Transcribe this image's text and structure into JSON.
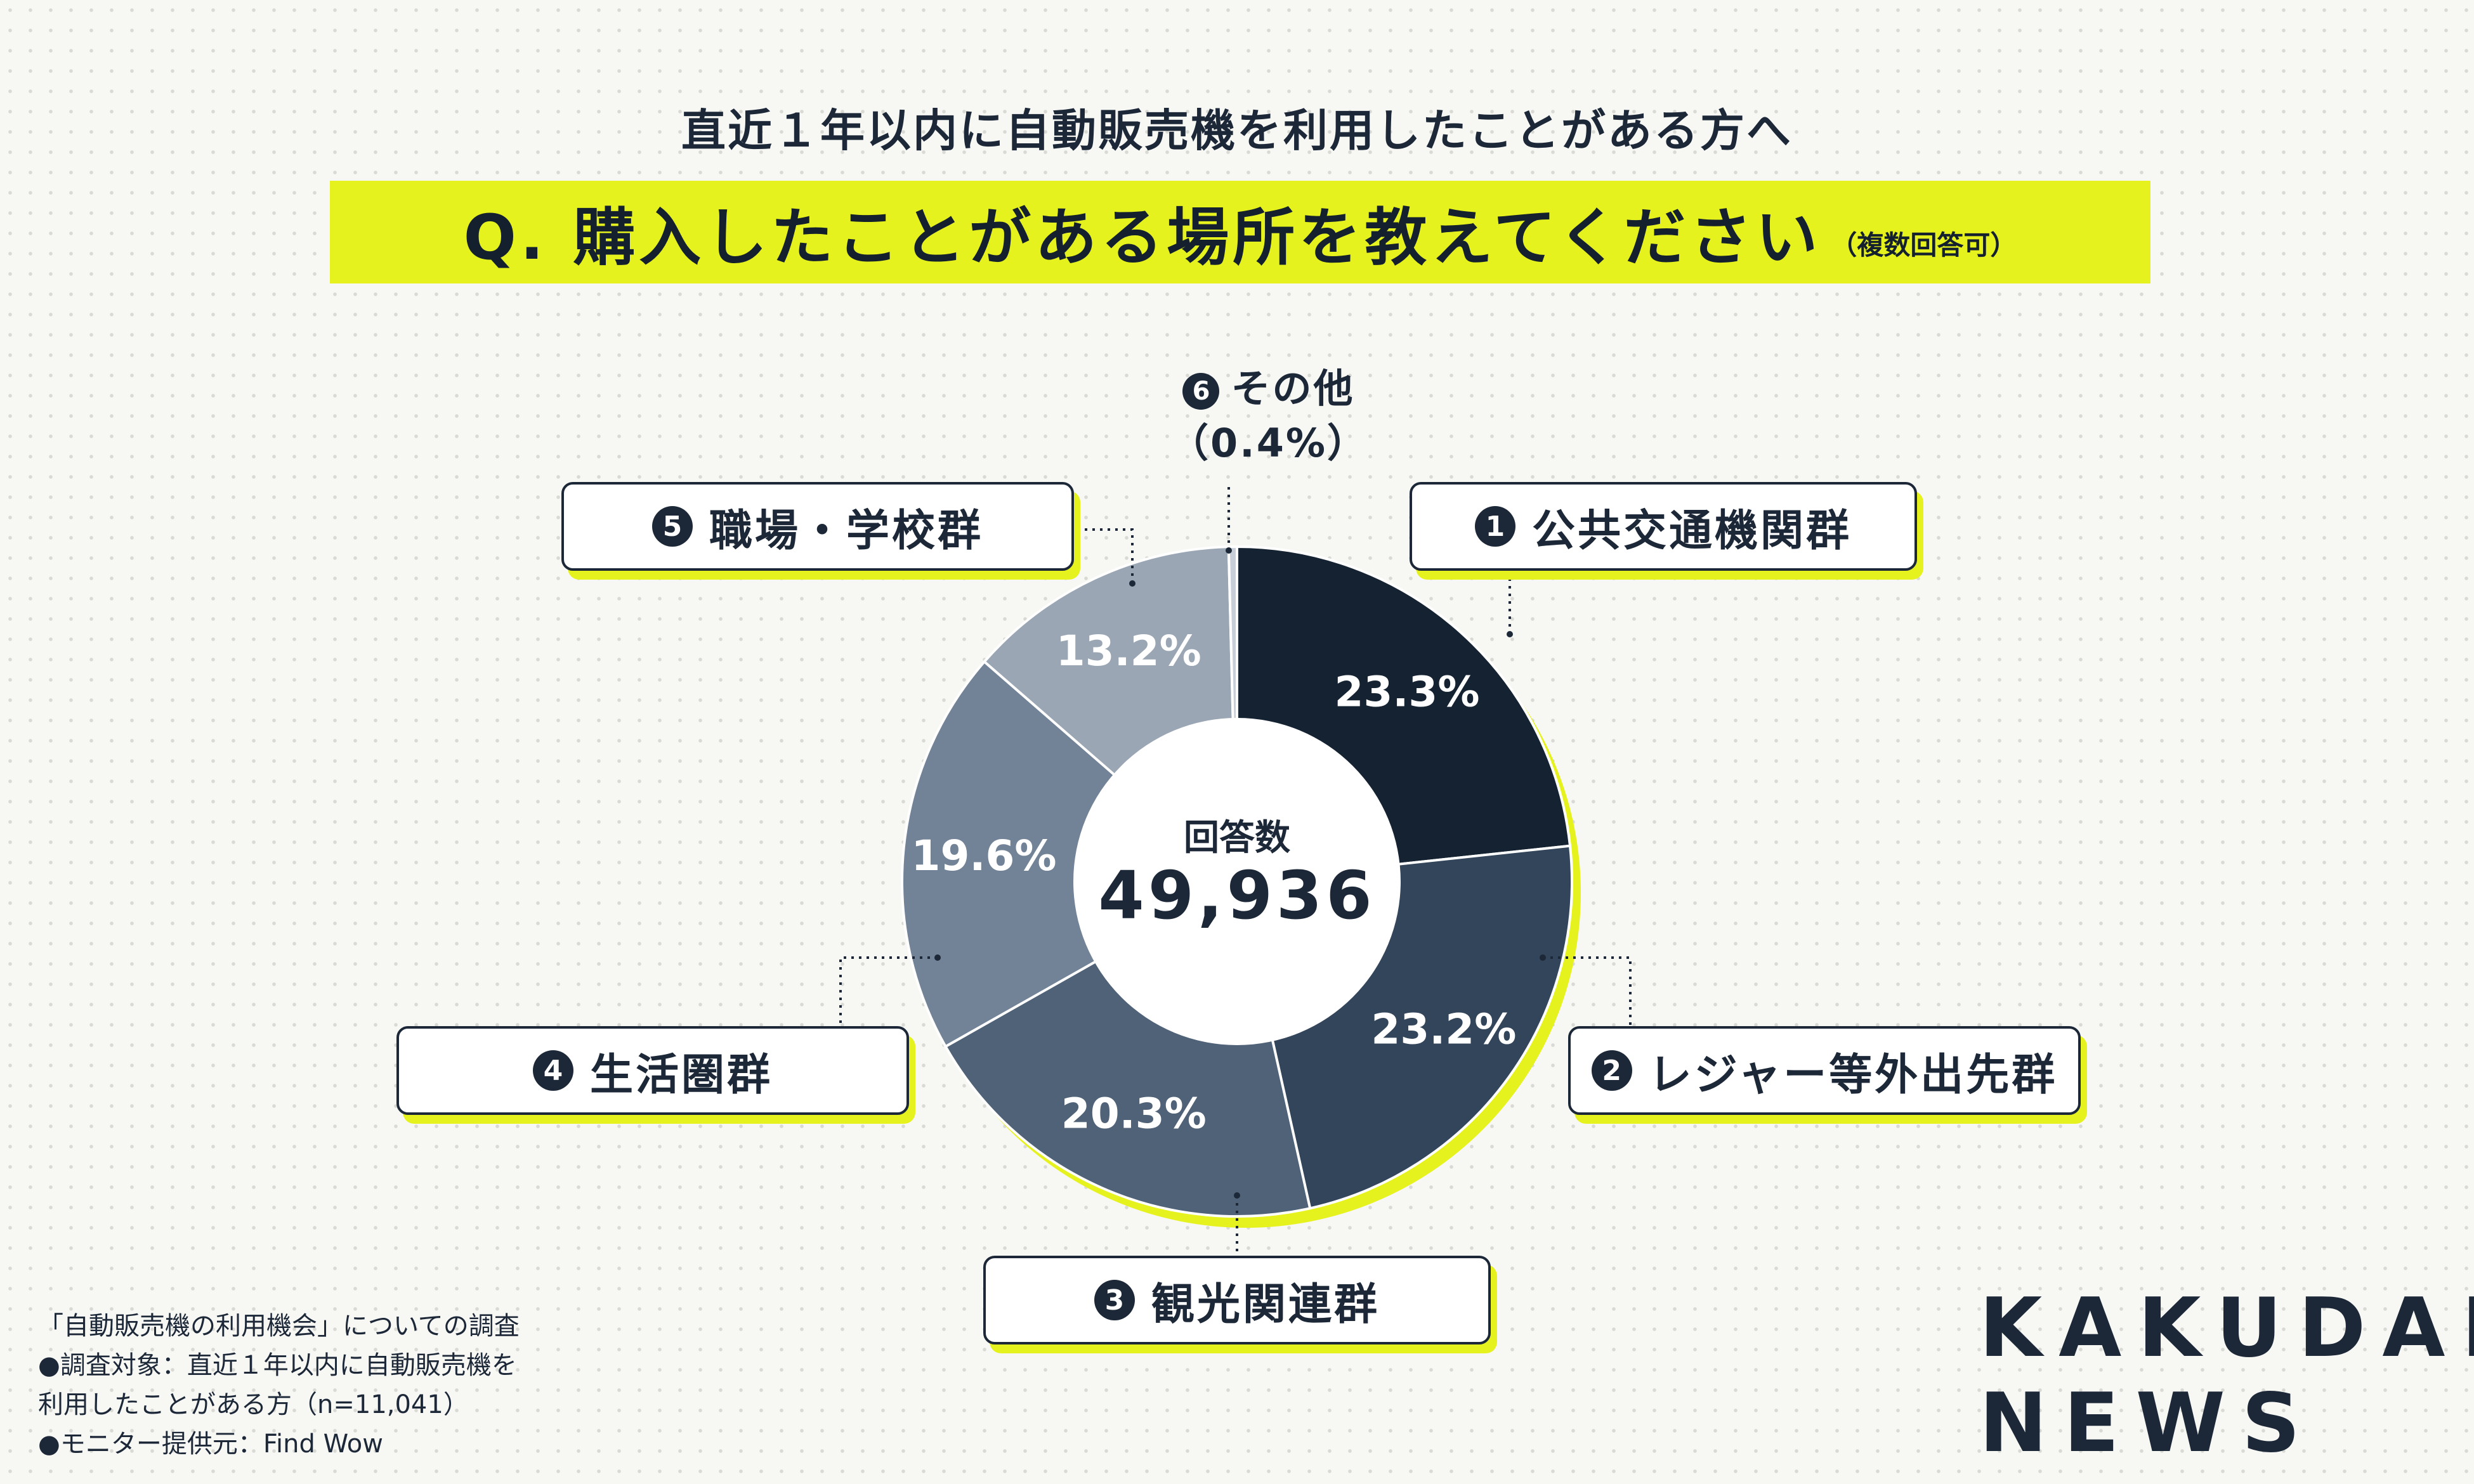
{
  "header": {
    "subtitle": "直近１年以内に自動販売機を利用したことがある方へ",
    "question": "Q. 購入したことがある場所を教えてください",
    "multi_answer": "（複数回答可）"
  },
  "center": {
    "label": "回答数",
    "value": "49,936"
  },
  "categories": [
    {
      "num": "1",
      "name": "公共交通機関群"
    },
    {
      "num": "2",
      "name": "レジャー等外出先群"
    },
    {
      "num": "3",
      "name": "観光関連群"
    },
    {
      "num": "4",
      "name": "生活圏群"
    },
    {
      "num": "5",
      "name": "職場・学校群"
    },
    {
      "num": "6",
      "name": "その他",
      "pct_label": "（0.4%）"
    }
  ],
  "chart_data": {
    "type": "pie",
    "donut": true,
    "title": "Q. 購入したことがある場所を教えてください",
    "center_label": "回答数",
    "center_value": "49,936",
    "categories": [
      "公共交通機関群",
      "レジャー等外出先群",
      "観光関連群",
      "生活圏群",
      "職場・学校群",
      "その他"
    ],
    "values": [
      23.3,
      23.2,
      20.3,
      19.6,
      13.2,
      0.4
    ],
    "value_labels": [
      "23.3%",
      "23.2%",
      "20.3%",
      "19.6%",
      "13.2%",
      "0.4%"
    ],
    "colors": [
      "#142232",
      "#33455a",
      "#506277",
      "#738397",
      "#9aa6b4",
      "#c7ced8"
    ],
    "accent_color": "#e6f21d"
  },
  "footnote": {
    "line1": "「自動販売機の利用機会」についての調査",
    "line2": "●調査対象：直近１年以内に自動販売機を",
    "line3": "利用したことがある方（n=11,041）",
    "line4": "●モニター提供元：Find Wow"
  },
  "logo": {
    "line1": "KAKUDAI",
    "line2": "NEWS"
  }
}
